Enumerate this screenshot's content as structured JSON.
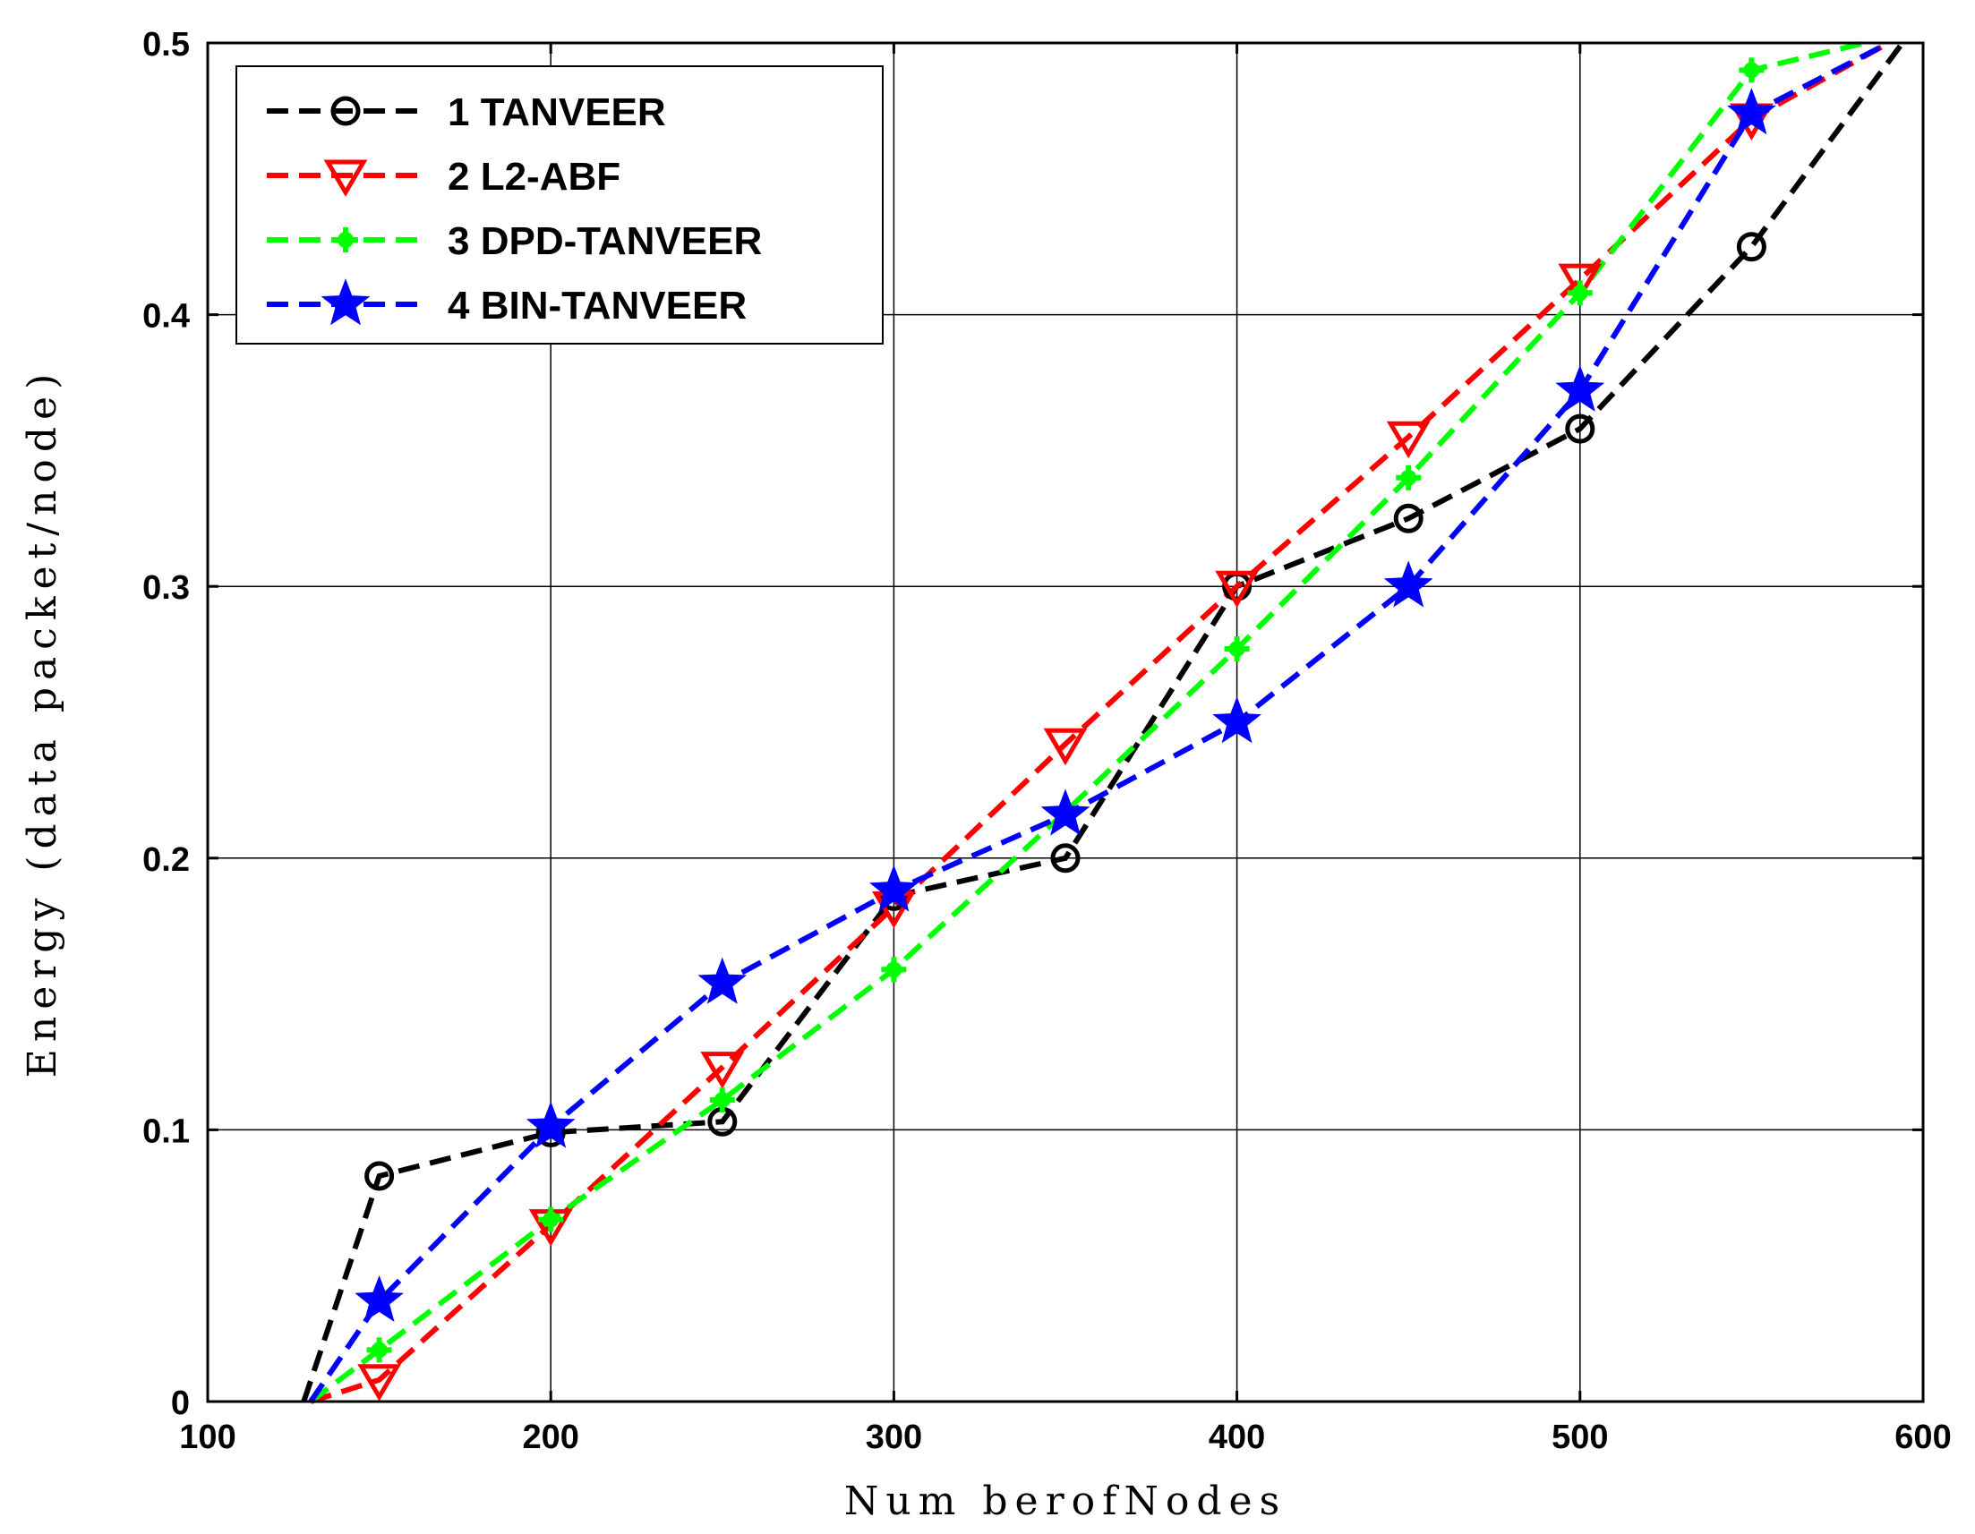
{
  "chart_data": {
    "type": "line",
    "title": "",
    "xlabel": "Num berofNodes",
    "ylabel": "Energy (data packet/node)",
    "xlim": [
      100,
      600
    ],
    "ylim": [
      0,
      0.5
    ],
    "xticks": [
      100,
      200,
      300,
      400,
      500,
      600
    ],
    "yticks": [
      0,
      0.1,
      0.2,
      0.3,
      0.4,
      0.5
    ],
    "xtick_labels": [
      "100",
      "200",
      "300",
      "400",
      "500",
      "600"
    ],
    "ytick_labels": [
      "0",
      "0.1",
      "0.2",
      "0.3",
      "0.4",
      "0.5"
    ],
    "grid": true,
    "legend_position": "top-left",
    "series": [
      {
        "name": "1 TANVEER",
        "color": "#000000",
        "marker": "circle",
        "x": [
          128,
          150,
          200,
          250,
          300,
          350,
          400,
          450,
          500,
          550,
          594
        ],
        "y": [
          0,
          0.083,
          0.099,
          0.103,
          0.186,
          0.2,
          0.3,
          0.325,
          0.358,
          0.425,
          0.5
        ]
      },
      {
        "name": "2 L2-ABF",
        "color": "#ff0000",
        "marker": "triangle-down",
        "x": [
          130,
          150,
          200,
          250,
          300,
          350,
          400,
          450,
          500,
          550,
          590
        ],
        "y": [
          0,
          0.008,
          0.065,
          0.123,
          0.182,
          0.242,
          0.3,
          0.355,
          0.413,
          0.472,
          0.5
        ]
      },
      {
        "name": "3 DPD-TANVEER",
        "color": "#00ff00",
        "marker": "plus",
        "x": [
          130,
          150,
          200,
          250,
          300,
          350,
          400,
          450,
          500,
          550,
          583
        ],
        "y": [
          0,
          0.019,
          0.067,
          0.111,
          0.159,
          0.217,
          0.277,
          0.34,
          0.408,
          0.49,
          0.5
        ]
      },
      {
        "name": "4 BIN-TANVEER",
        "color": "#0000ff",
        "marker": "star",
        "x": [
          130,
          150,
          200,
          250,
          300,
          350,
          400,
          450,
          500,
          550,
          590
        ],
        "y": [
          0,
          0.037,
          0.101,
          0.154,
          0.188,
          0.216,
          0.25,
          0.3,
          0.372,
          0.474,
          0.5
        ]
      }
    ]
  }
}
